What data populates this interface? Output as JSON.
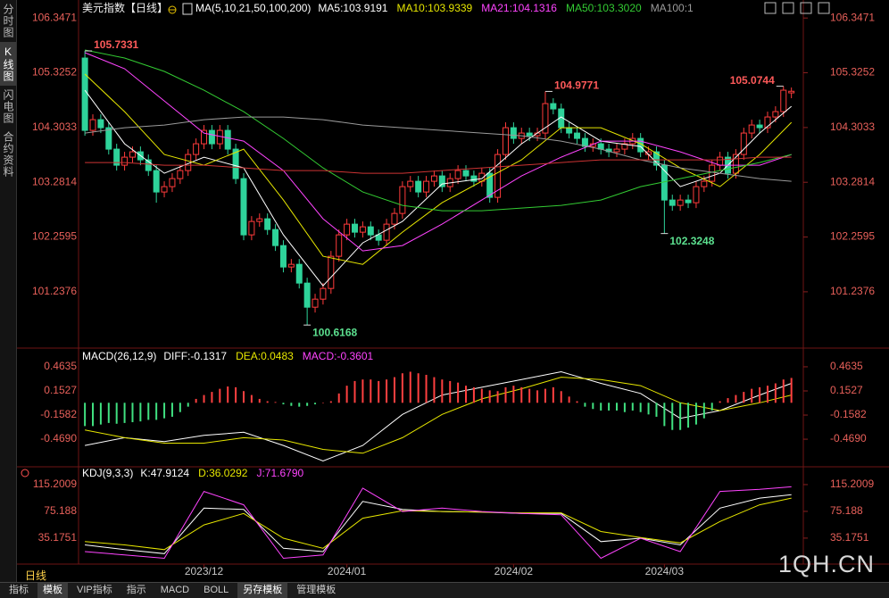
{
  "ui": {
    "instrument": "美元指数【日线】",
    "side_tabs": [
      "分时图",
      "K线图",
      "闪电图",
      "合约资料"
    ],
    "period": "日线",
    "bottom_tabs": [
      "指标",
      "模板",
      "VIP指标",
      "指示",
      "MACD",
      "BOLL",
      "另存模板",
      "管理模板"
    ],
    "watermark": "1QH.CN"
  },
  "chart_data": [
    {
      "type": "candlestick",
      "title": "MA(5,10,21,50,100,200)",
      "categories": [
        null,
        null,
        null,
        null,
        null,
        null,
        null,
        null,
        null,
        null,
        null,
        null,
        null,
        null,
        null,
        "2023/12",
        null,
        null,
        null,
        null,
        null,
        null,
        null,
        null,
        null,
        null,
        null,
        null,
        null,
        null,
        null,
        null,
        null,
        "2024/01",
        null,
        null,
        null,
        null,
        null,
        null,
        null,
        null,
        null,
        null,
        null,
        null,
        null,
        null,
        null,
        null,
        null,
        null,
        null,
        null,
        "2024/02",
        null,
        null,
        null,
        null,
        null,
        null,
        null,
        null,
        null,
        null,
        null,
        null,
        null,
        null,
        null,
        null,
        null,
        null,
        "2024/03",
        null,
        null,
        null,
        null,
        null,
        null,
        null,
        null,
        null,
        null,
        null,
        null,
        null,
        null,
        null,
        null
      ],
      "open": [
        105.6,
        104.25,
        104.45,
        104.3,
        103.9,
        103.6,
        103.75,
        103.85,
        103.7,
        103.5,
        103.1,
        103.2,
        103.35,
        103.5,
        103.8,
        104.0,
        104.25,
        104.0,
        104.25,
        103.9,
        103.35,
        102.3,
        102.55,
        102.6,
        102.4,
        102.1,
        101.7,
        101.75,
        101.4,
        100.95,
        101.1,
        101.3,
        101.9,
        102.3,
        102.5,
        102.35,
        102.45,
        102.3,
        102.2,
        102.5,
        102.7,
        103.2,
        103.3,
        103.1,
        103.3,
        103.4,
        103.2,
        103.35,
        103.5,
        103.4,
        103.3,
        103.45,
        103.0,
        103.8,
        104.3,
        104.1,
        104.2,
        104.15,
        104.2,
        104.75,
        104.65,
        104.3,
        104.2,
        104.1,
        103.95,
        104.0,
        103.9,
        103.85,
        103.9,
        104.0,
        104.1,
        103.8,
        103.85,
        103.6,
        102.95,
        102.85,
        102.95,
        102.9,
        103.2,
        103.3,
        103.6,
        103.75,
        103.45,
        103.8,
        104.2,
        104.35,
        104.3,
        104.5,
        104.6,
        104.95
      ],
      "high": [
        105.7331,
        104.55,
        104.55,
        104.4,
        104.0,
        103.85,
        103.95,
        103.95,
        103.8,
        103.6,
        103.3,
        103.45,
        103.6,
        103.9,
        104.1,
        104.35,
        104.35,
        104.35,
        104.35,
        104.0,
        103.45,
        102.65,
        102.7,
        102.7,
        102.5,
        102.2,
        101.85,
        101.85,
        101.5,
        101.2,
        101.4,
        102.0,
        102.4,
        102.6,
        102.6,
        102.55,
        102.55,
        102.4,
        102.6,
        102.8,
        103.3,
        103.4,
        103.4,
        103.4,
        103.5,
        103.5,
        103.45,
        103.6,
        103.6,
        103.5,
        103.55,
        103.55,
        103.9,
        104.4,
        104.4,
        104.3,
        104.3,
        104.3,
        104.9771,
        104.85,
        104.75,
        104.4,
        104.3,
        104.2,
        104.1,
        104.1,
        104.0,
        104.0,
        104.1,
        104.2,
        104.2,
        103.95,
        103.95,
        103.7,
        103.05,
        103.05,
        103.05,
        103.3,
        103.4,
        103.7,
        103.85,
        103.85,
        103.9,
        104.3,
        104.45,
        104.45,
        104.6,
        104.7,
        105.0744,
        105.05
      ],
      "low": [
        104.15,
        104.15,
        104.2,
        103.8,
        103.5,
        103.5,
        103.65,
        103.6,
        103.4,
        102.9,
        103.0,
        103.1,
        103.25,
        103.4,
        103.7,
        103.9,
        103.9,
        103.9,
        103.8,
        103.25,
        102.2,
        102.2,
        102.45,
        102.3,
        102.0,
        101.6,
        101.6,
        101.3,
        100.6168,
        100.85,
        101.0,
        101.2,
        101.8,
        102.2,
        102.25,
        102.25,
        102.2,
        102.1,
        102.1,
        102.4,
        102.6,
        103.1,
        103.0,
        103.0,
        103.2,
        103.1,
        103.1,
        103.25,
        103.3,
        103.2,
        103.2,
        102.9,
        102.9,
        103.7,
        104.0,
        104.0,
        104.05,
        104.05,
        104.1,
        104.55,
        104.2,
        104.1,
        104.0,
        103.85,
        103.85,
        103.8,
        103.75,
        103.75,
        103.8,
        103.9,
        103.75,
        103.7,
        103.5,
        102.3248,
        102.75,
        102.75,
        102.8,
        102.8,
        103.1,
        103.2,
        103.5,
        103.35,
        103.35,
        103.7,
        104.1,
        104.2,
        104.2,
        104.4,
        104.5,
        104.85
      ],
      "close": [
        104.25,
        104.45,
        104.3,
        103.9,
        103.6,
        103.75,
        103.85,
        103.7,
        103.5,
        103.1,
        103.2,
        103.35,
        103.5,
        103.8,
        104.0,
        104.25,
        104.0,
        104.25,
        103.9,
        103.35,
        102.3,
        102.55,
        102.6,
        102.4,
        102.1,
        101.7,
        101.75,
        101.4,
        100.95,
        101.1,
        101.3,
        101.9,
        102.3,
        102.5,
        102.35,
        102.45,
        102.3,
        102.2,
        102.5,
        102.7,
        103.2,
        103.3,
        103.1,
        103.3,
        103.4,
        103.2,
        103.35,
        103.5,
        103.4,
        103.3,
        103.45,
        103.0,
        103.8,
        104.3,
        104.1,
        104.2,
        104.15,
        104.2,
        104.75,
        104.65,
        104.3,
        104.2,
        104.1,
        103.95,
        104.0,
        103.9,
        103.85,
        103.9,
        104.0,
        104.1,
        103.85,
        103.85,
        103.6,
        102.95,
        102.85,
        102.95,
        102.9,
        103.2,
        103.3,
        103.6,
        103.75,
        103.45,
        103.8,
        104.2,
        104.35,
        104.3,
        104.5,
        104.6,
        105.0,
        104.98
      ],
      "up_color": "#ff3b3b",
      "down_color": "#2ed39a",
      "title_color": "#ffffff",
      "labeled_highs": [
        0,
        58,
        88
      ],
      "labeled_lows": [
        28,
        73
      ],
      "high_label_color": "#ff5a5a",
      "low_label_color": "#5ce08f",
      "series": [
        {
          "name": "MA5:103.9191",
          "color": "#ffffff",
          "x": [
            0,
            5,
            10,
            15,
            20,
            25,
            30,
            35,
            40,
            45,
            50,
            55,
            60,
            65,
            70,
            75,
            80,
            85,
            89
          ],
          "values": [
            105.0,
            104.0,
            103.45,
            103.75,
            103.55,
            102.3,
            101.35,
            102.15,
            102.55,
            103.25,
            103.35,
            104.0,
            104.5,
            104.05,
            103.95,
            103.2,
            103.45,
            104.2,
            104.7
          ]
        },
        {
          "name": "MA10:103.9339",
          "color": "#e6e600",
          "x": [
            0,
            5,
            10,
            15,
            20,
            25,
            30,
            35,
            40,
            45,
            50,
            55,
            60,
            65,
            70,
            75,
            80,
            85,
            89
          ],
          "values": [
            105.3,
            104.6,
            103.8,
            103.6,
            103.9,
            102.95,
            101.9,
            101.75,
            102.35,
            102.9,
            103.3,
            103.7,
            104.3,
            104.3,
            104.0,
            103.55,
            103.2,
            103.8,
            104.4
          ]
        },
        {
          "name": "MA21:104.1316",
          "color": "#ff44ff",
          "x": [
            0,
            5,
            10,
            15,
            20,
            25,
            30,
            35,
            40,
            45,
            50,
            55,
            60,
            65,
            70,
            75,
            80,
            85,
            89
          ],
          "values": [
            105.7,
            105.4,
            104.8,
            104.2,
            104.05,
            103.5,
            102.6,
            102.0,
            102.1,
            102.5,
            102.95,
            103.4,
            103.75,
            104.05,
            104.05,
            103.85,
            103.6,
            103.6,
            103.8
          ]
        },
        {
          "name": "MA50:103.3020",
          "color": "#33cc33",
          "x": [
            0,
            5,
            10,
            15,
            20,
            25,
            30,
            35,
            40,
            45,
            50,
            55,
            60,
            65,
            70,
            75,
            80,
            85,
            89
          ],
          "values": [
            105.75,
            105.6,
            105.35,
            105.0,
            104.6,
            104.1,
            103.55,
            103.1,
            102.85,
            102.75,
            102.75,
            102.8,
            102.85,
            102.95,
            103.2,
            103.35,
            103.5,
            103.65,
            103.8
          ]
        },
        {
          "name": "MA100:1",
          "color": "#9a9a9a",
          "x": [
            0,
            5,
            10,
            15,
            20,
            25,
            30,
            35,
            40,
            45,
            50,
            55,
            60,
            65,
            70,
            75,
            80,
            85,
            89
          ],
          "values": [
            104.2,
            104.3,
            104.35,
            104.45,
            104.5,
            104.5,
            104.45,
            104.35,
            104.3,
            104.25,
            104.2,
            104.15,
            104.05,
            103.9,
            103.7,
            103.55,
            103.45,
            103.35,
            103.3
          ]
        },
        {
          "color": "#cc3333",
          "x": [
            0,
            5,
            10,
            15,
            20,
            25,
            30,
            35,
            40,
            45,
            50,
            55,
            60,
            65,
            70,
            75,
            80,
            85,
            89
          ],
          "values": [
            103.65,
            103.65,
            103.6,
            103.6,
            103.55,
            103.5,
            103.5,
            103.45,
            103.45,
            103.5,
            103.55,
            103.6,
            103.65,
            103.7,
            103.7,
            103.7,
            103.7,
            103.75,
            103.75
          ]
        }
      ],
      "xlim": [
        -0.8,
        90.5
      ],
      "ylim": [
        100.27,
        106.6
      ],
      "yticks": [
        106.3471,
        105.3252,
        104.3033,
        103.2814,
        102.2595,
        101.2376
      ]
    },
    {
      "type": "macd",
      "title": "MACD(26,12,9)",
      "title_color": "#ffffff",
      "series": [
        {
          "name": "DIFF:-0.1317",
          "color": "#ffffff",
          "x": [
            0,
            5,
            10,
            15,
            20,
            25,
            30,
            35,
            40,
            45,
            50,
            55,
            60,
            65,
            70,
            75,
            80,
            85,
            89
          ],
          "values": [
            -0.55,
            -0.45,
            -0.5,
            -0.42,
            -0.38,
            -0.55,
            -0.75,
            -0.55,
            -0.15,
            0.1,
            0.2,
            0.3,
            0.4,
            0.25,
            0.12,
            -0.2,
            -0.1,
            0.1,
            0.25
          ]
        },
        {
          "name": "DEA:0.0483",
          "color": "#e6e600",
          "x": [
            0,
            5,
            10,
            15,
            20,
            25,
            30,
            35,
            40,
            45,
            50,
            55,
            60,
            65,
            70,
            75,
            80,
            85,
            89
          ],
          "values": [
            -0.35,
            -0.45,
            -0.52,
            -0.52,
            -0.45,
            -0.48,
            -0.6,
            -0.65,
            -0.45,
            -0.15,
            0.05,
            0.18,
            0.33,
            0.3,
            0.22,
            0.0,
            -0.1,
            0.0,
            0.1
          ]
        },
        {
          "name": "MACD:-0.3601",
          "color": "#ff44ff",
          "style": "histogram",
          "up_color": "#ff4040",
          "down_color": "#40e080",
          "values": [
            -0.3,
            -0.3,
            -0.28,
            -0.26,
            -0.27,
            -0.26,
            -0.25,
            -0.24,
            -0.22,
            -0.22,
            -0.2,
            -0.18,
            -0.12,
            -0.05,
            0.05,
            0.1,
            0.14,
            0.18,
            0.21,
            0.2,
            0.15,
            0.1,
            0.05,
            0.02,
            0.01,
            -0.02,
            -0.04,
            -0.05,
            -0.04,
            -0.02,
            0.0,
            0.02,
            0.12,
            0.22,
            0.28,
            0.3,
            0.3,
            0.28,
            0.3,
            0.33,
            0.38,
            0.4,
            0.38,
            0.36,
            0.33,
            0.3,
            0.28,
            0.26,
            0.22,
            0.2,
            0.18,
            0.16,
            0.15,
            0.2,
            0.22,
            0.2,
            0.18,
            0.16,
            0.18,
            0.2,
            0.15,
            0.08,
            0.02,
            -0.05,
            -0.08,
            -0.1,
            -0.1,
            -0.1,
            -0.12,
            -0.1,
            -0.12,
            -0.15,
            -0.18,
            -0.3,
            -0.35,
            -0.35,
            -0.32,
            -0.28,
            -0.2,
            -0.1,
            0.02,
            0.06,
            0.1,
            0.14,
            0.18,
            0.2,
            0.22,
            0.25,
            0.3,
            0.32
          ]
        }
      ],
      "xlim": [
        -0.8,
        90.5
      ],
      "ylim": [
        -0.79,
        0.67
      ],
      "yticks": [
        0.4635,
        0.1527,
        -0.1582,
        {
          "value": -0.469,
          "label": "-0.4690"
        }
      ]
    },
    {
      "type": "line",
      "title": "KDJ(9,3,3)",
      "title_color": "#ffffff",
      "series": [
        {
          "name": "K:47.9124",
          "color": "#ffffff",
          "x": [
            0,
            5,
            10,
            15,
            20,
            25,
            30,
            35,
            40,
            45,
            50,
            55,
            60,
            65,
            70,
            75,
            80,
            85,
            89
          ],
          "values": [
            25,
            18,
            12,
            80,
            78,
            20,
            15,
            90,
            78,
            75,
            74,
            72,
            72,
            30,
            35,
            25,
            80,
            95,
            100
          ]
        },
        {
          "name": "D:36.0292",
          "color": "#e6e600",
          "x": [
            0,
            5,
            10,
            15,
            20,
            25,
            30,
            35,
            40,
            45,
            50,
            55,
            60,
            65,
            70,
            75,
            80,
            85,
            89
          ],
          "values": [
            30,
            25,
            18,
            55,
            72,
            35,
            20,
            65,
            76,
            75,
            74,
            73,
            73,
            45,
            36,
            28,
            60,
            85,
            95
          ]
        },
        {
          "name": "J:71.6790",
          "color": "#ff44ff",
          "x": [
            0,
            5,
            10,
            15,
            20,
            25,
            30,
            35,
            40,
            45,
            50,
            55,
            60,
            65,
            70,
            75,
            80,
            85,
            89
          ],
          "values": [
            15,
            10,
            5,
            105,
            85,
            5,
            10,
            110,
            75,
            80,
            75,
            72,
            70,
            5,
            35,
            15,
            105,
            108,
            112
          ]
        }
      ],
      "xlim": [
        -0.8,
        90.5
      ],
      "ylim": [
        -1,
        136.5
      ],
      "yticks": [
        115.2009,
        75.188,
        35.1751
      ]
    }
  ]
}
